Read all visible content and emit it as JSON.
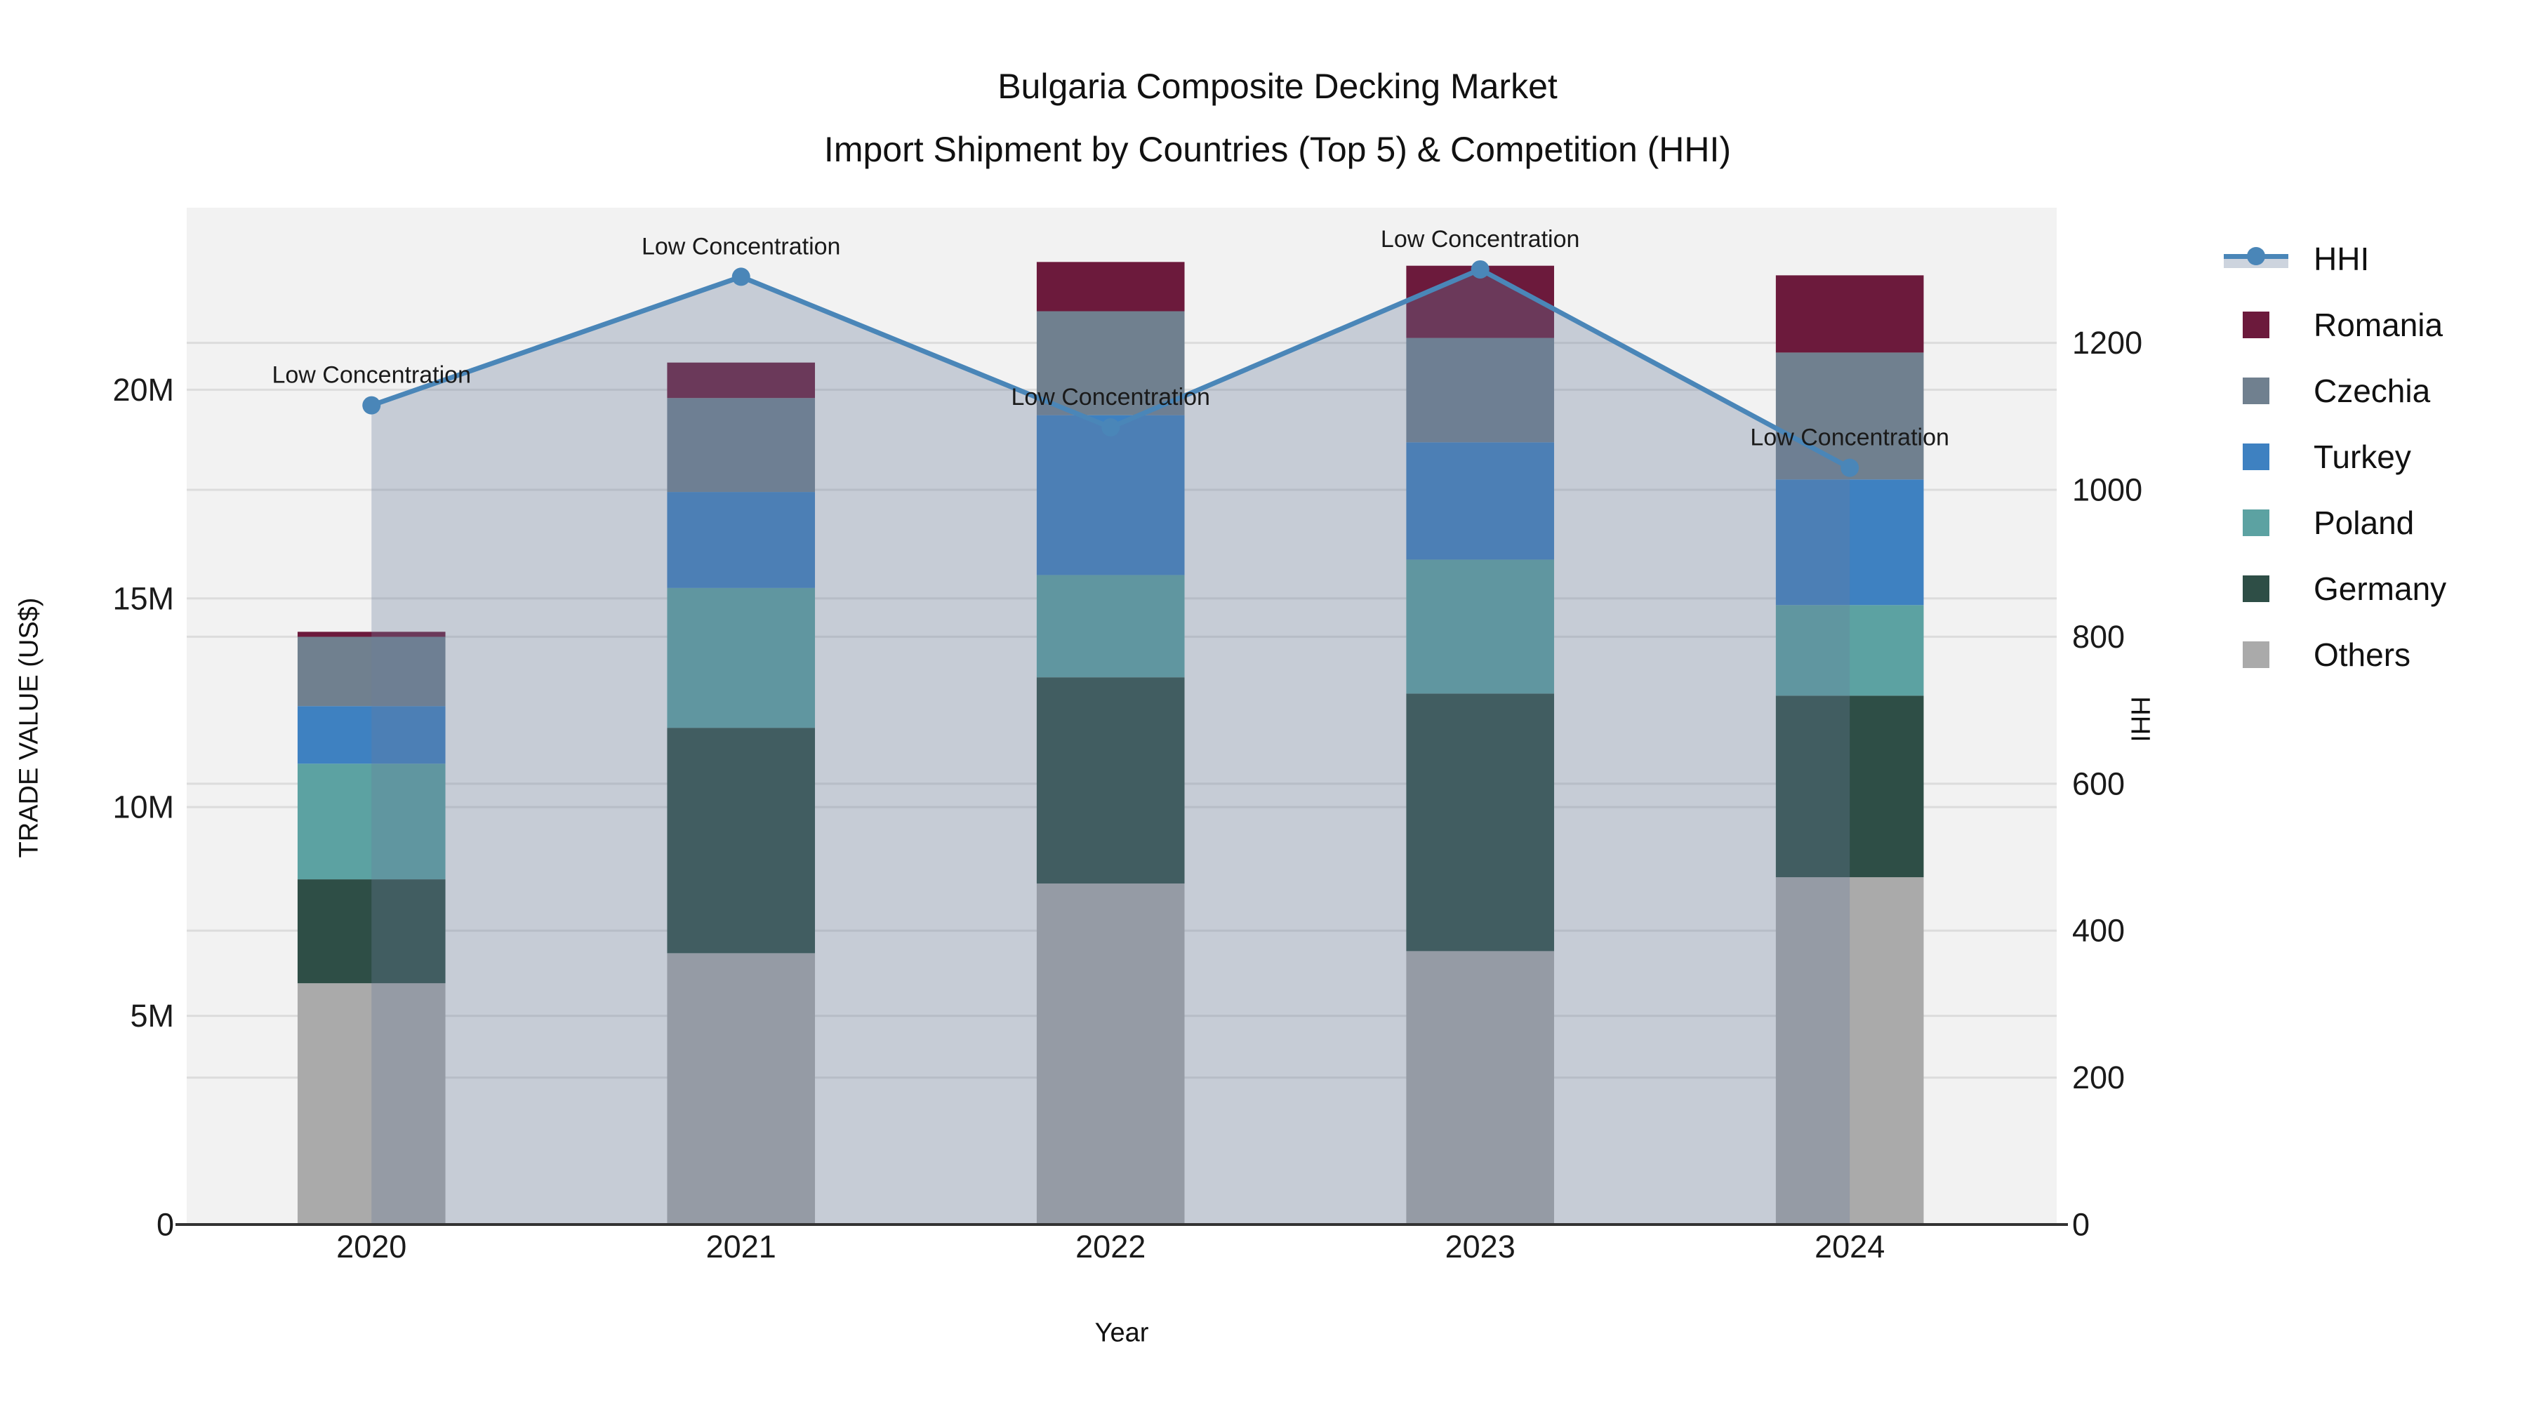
{
  "title": {
    "line1": "Bulgaria Composite Decking Market",
    "line2": "Import Shipment by Countries (Top 5) & Competition (HHI)"
  },
  "colors": {
    "figure_bg": "#ffffff",
    "plot_bg": "#f2f2f2",
    "grid": "#dcdcdc",
    "axis_line": "#333333",
    "text": "#1a1a1a",
    "hhi_line": "#4a86b8",
    "hhi_area": "rgba(105,125,155,0.32)",
    "legend_area_band": "#cdd4de"
  },
  "legend": {
    "items": [
      {
        "label": "HHI",
        "type": "line",
        "color": "#4a86b8"
      },
      {
        "label": "Romania",
        "type": "patch",
        "color": "#6c1a3c"
      },
      {
        "label": "Czechia",
        "type": "patch",
        "color": "#70808f"
      },
      {
        "label": "Turkey",
        "type": "patch",
        "color": "#3e81c1"
      },
      {
        "label": "Poland",
        "type": "patch",
        "color": "#5ca2a2"
      },
      {
        "label": "Germany",
        "type": "patch",
        "color": "#2e4e46"
      },
      {
        "label": "Others",
        "type": "patch",
        "color": "#aaaaaa"
      }
    ]
  },
  "chart_data": {
    "type": "bar",
    "subtype": "stacked-bars-with-line-overlay",
    "title": "Bulgaria Composite Decking Market",
    "subtitle": "Import Shipment by Countries (Top 5) & Competition (HHI)",
    "xlabel": "Year",
    "categories": [
      "2020",
      "2021",
      "2022",
      "2023",
      "2024"
    ],
    "left_axis": {
      "label": "TRADE VALUE (US$)",
      "tick_labels": [
        "0",
        "5M",
        "10M",
        "15M",
        "20M"
      ],
      "tick_values": [
        0,
        5,
        10,
        15,
        20
      ],
      "ylim": [
        0,
        24.36
      ],
      "unit": "million US$"
    },
    "right_axis": {
      "label": "HHI",
      "tick_labels": [
        "0",
        "200",
        "400",
        "600",
        "800",
        "1000",
        "1200"
      ],
      "tick_values": [
        0,
        200,
        400,
        600,
        800,
        1000,
        1200
      ],
      "ylim": [
        0,
        1384
      ]
    },
    "xlim": [
      -0.5,
      4.56
    ],
    "bar_width_units": 0.4,
    "grid": "horizontal-only",
    "legend_position": "outside-top-right",
    "series": [
      {
        "name": "Others",
        "color": "#aaaaaa",
        "values": [
          5.78,
          6.5,
          8.17,
          6.55,
          8.32
        ]
      },
      {
        "name": "Germany",
        "color": "#2e4e46",
        "values": [
          2.49,
          5.4,
          4.94,
          6.17,
          4.35
        ]
      },
      {
        "name": "Poland",
        "color": "#5ca2a2",
        "values": [
          2.77,
          3.35,
          2.45,
          3.21,
          2.17
        ]
      },
      {
        "name": "Turkey",
        "color": "#3e81c1",
        "values": [
          1.38,
          2.3,
          3.83,
          2.81,
          3.01
        ]
      },
      {
        "name": "Czechia",
        "color": "#70808f",
        "values": [
          1.66,
          2.25,
          2.49,
          2.5,
          3.04
        ]
      },
      {
        "name": "Romania",
        "color": "#6c1a3c",
        "values": [
          0.12,
          0.85,
          1.18,
          1.73,
          1.85
        ]
      }
    ],
    "stack_order_bottom_to_top": [
      "Others",
      "Germany",
      "Poland",
      "Turkey",
      "Czechia",
      "Romania"
    ],
    "bar_totals": [
      14.2,
      20.65,
      23.06,
      22.97,
      22.74
    ],
    "line_series": {
      "name": "HHI",
      "color": "#4a86b8",
      "axis": "right",
      "area_fill": true,
      "values": [
        1115,
        1290,
        1085,
        1300,
        1030
      ]
    },
    "annotations": [
      {
        "category": "2020",
        "label": "Low Concentration"
      },
      {
        "category": "2021",
        "label": "Low Concentration"
      },
      {
        "category": "2022",
        "label": "Low Concentration"
      },
      {
        "category": "2023",
        "label": "Low Concentration"
      },
      {
        "category": "2024",
        "label": "Low Concentration"
      }
    ]
  }
}
